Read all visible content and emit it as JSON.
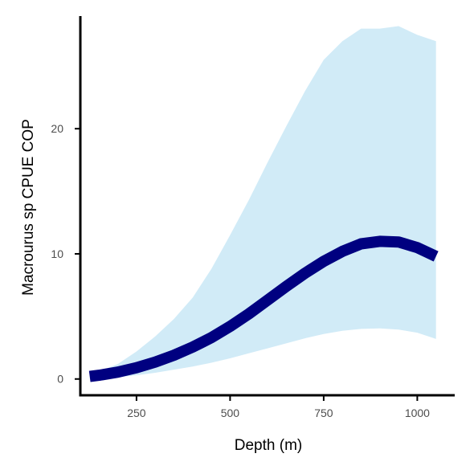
{
  "chart_data": {
    "type": "line",
    "title": "",
    "xlabel": "Depth (m)",
    "ylabel": "Macrourus sp  CPUE COP",
    "xlim": [
      100,
      1100
    ],
    "ylim": [
      -1.3,
      29
    ],
    "x_ticks": [
      250,
      500,
      750,
      1000
    ],
    "y_ticks": [
      0,
      10,
      20
    ],
    "grid": false,
    "legend": "none",
    "series": [
      {
        "x": [
          125,
          150,
          200,
          250,
          300,
          350,
          400,
          450,
          500,
          550,
          600,
          650,
          700,
          750,
          800,
          850,
          900,
          950,
          1000,
          1050
        ],
        "y": [
          0.2,
          0.3,
          0.55,
          0.9,
          1.35,
          1.9,
          2.55,
          3.3,
          4.2,
          5.2,
          6.3,
          7.4,
          8.45,
          9.4,
          10.2,
          10.8,
          11.0,
          10.95,
          10.5,
          9.8
        ],
        "lower": [
          0.0,
          0.05,
          0.15,
          0.3,
          0.5,
          0.75,
          1.0,
          1.3,
          1.65,
          2.05,
          2.45,
          2.85,
          3.25,
          3.6,
          3.85,
          4.0,
          4.05,
          3.95,
          3.7,
          3.2
        ],
        "upper": [
          0.3,
          0.6,
          1.2,
          2.2,
          3.4,
          4.8,
          6.5,
          8.8,
          11.5,
          14.3,
          17.3,
          20.2,
          23.0,
          25.5,
          27.0,
          28.0,
          28.0,
          28.2,
          27.5,
          27.0
        ]
      }
    ],
    "colors": {
      "line": "#000080",
      "ribbon": "#d1ebf7",
      "axis": "#000000",
      "tick_label": "#4d4d4d"
    }
  }
}
